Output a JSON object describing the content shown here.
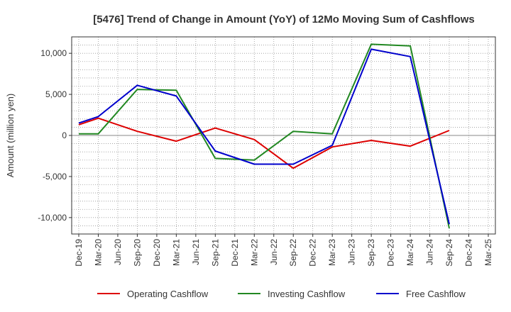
{
  "chart_data": {
    "type": "line",
    "title": "[5476]  Trend of Change in Amount (YoY) of 12Mo Moving Sum of Cashflows",
    "xlabel": "",
    "ylabel": "Amount (million yen)",
    "categories": [
      "Dec-19",
      "Mar-20",
      "Jun-20",
      "Sep-20",
      "Dec-20",
      "Mar-21",
      "Jun-21",
      "Sep-21",
      "Dec-21",
      "Mar-22",
      "Jun-22",
      "Sep-22",
      "Dec-22",
      "Mar-23",
      "Jun-23",
      "Sep-23",
      "Dec-23",
      "Mar-24",
      "Jun-24",
      "Sep-24",
      "Dec-24",
      "Mar-25"
    ],
    "ylim": [
      -12000,
      12000
    ],
    "yticks": [
      10000,
      5000,
      0,
      -5000,
      -10000
    ],
    "ytick_labels": [
      "10,000",
      "5,000",
      "0",
      "-5,000",
      "-10,000"
    ],
    "grid": true,
    "legend_position": "bottom",
    "series": [
      {
        "name": "Operating Cashflow",
        "color": "#dd0000",
        "values": [
          1300,
          2100,
          null,
          500,
          null,
          -700,
          null,
          900,
          null,
          -500,
          null,
          -4000,
          null,
          -1400,
          null,
          -600,
          null,
          -1300,
          null,
          600,
          null,
          null
        ]
      },
      {
        "name": "Investing Cashflow",
        "color": "#228822",
        "values": [
          200,
          200,
          null,
          5600,
          null,
          5500,
          null,
          -2800,
          null,
          -3000,
          null,
          500,
          null,
          200,
          null,
          11100,
          null,
          10900,
          null,
          -11300,
          null,
          null
        ]
      },
      {
        "name": "Free Cashflow",
        "color": "#0000cc",
        "values": [
          1500,
          2300,
          null,
          6100,
          null,
          4800,
          null,
          -1900,
          null,
          -3500,
          null,
          -3500,
          null,
          -1200,
          null,
          10500,
          null,
          9600,
          null,
          -10800,
          null,
          null
        ]
      }
    ]
  }
}
